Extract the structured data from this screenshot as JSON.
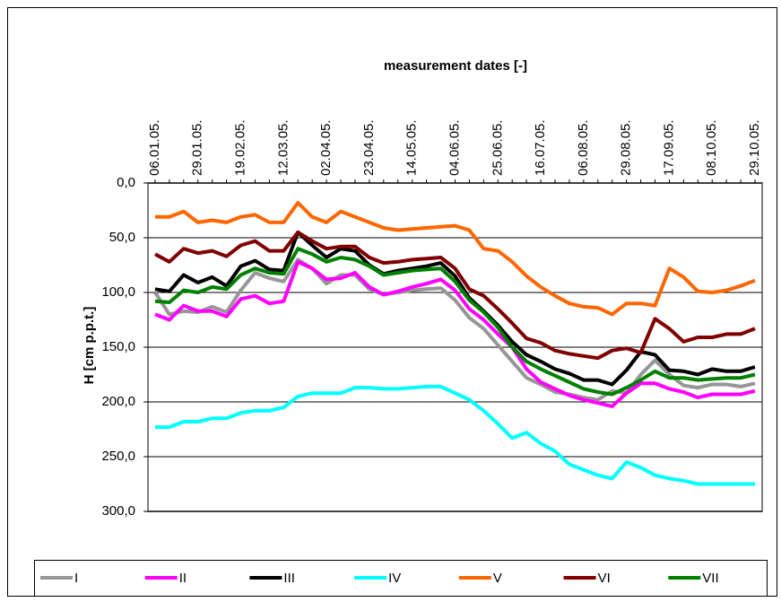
{
  "chart_data": {
    "type": "line",
    "title": "measurement dates [-]",
    "y_label": "H [cm p.p.t.]",
    "y_inverted": true,
    "grid": true,
    "legend": "bottom",
    "categories": [
      "06.01.05.",
      null,
      null,
      "29.01.05.",
      null,
      null,
      "19.02.05.",
      null,
      null,
      "12.03.05.",
      null,
      null,
      "02.04.05.",
      null,
      null,
      "23.04.05.",
      null,
      null,
      "14.05.05.",
      null,
      null,
      "04.06.05.",
      null,
      null,
      "25.06.05.",
      null,
      null,
      "16.07.05.",
      null,
      null,
      "06.08.05.",
      null,
      null,
      "29.08.05.",
      null,
      null,
      "17.09.05.",
      null,
      null,
      "08.10.05.",
      null,
      null,
      "29.10.05."
    ],
    "ylim": [
      0,
      300
    ],
    "yticks": [
      {
        "value": 0,
        "label": "0,0"
      },
      {
        "value": 50,
        "label": "50,0"
      },
      {
        "value": 100,
        "label": "100,0"
      },
      {
        "value": 150,
        "label": "150,0"
      },
      {
        "value": 200,
        "label": "200,0"
      },
      {
        "value": 250,
        "label": "250,0"
      },
      {
        "value": 300,
        "label": "300,0"
      }
    ],
    "series": [
      {
        "name": "I",
        "color": "#969696",
        "values": [
          100,
          120,
          117,
          118,
          113,
          118,
          98,
          82,
          87,
          90,
          70,
          78,
          92,
          84,
          84,
          97,
          102,
          100,
          98,
          97,
          96,
          107,
          123,
          133,
          148,
          163,
          178,
          184,
          191,
          193,
          196,
          198,
          190,
          192,
          175,
          162,
          175,
          185,
          187,
          184,
          184,
          186,
          183
        ]
      },
      {
        "name": "II",
        "color": "#ff00ff",
        "values": [
          120,
          125,
          112,
          117,
          117,
          122,
          106,
          103,
          110,
          108,
          72,
          78,
          88,
          87,
          82,
          95,
          102,
          99,
          95,
          92,
          88,
          98,
          115,
          125,
          138,
          150,
          170,
          182,
          188,
          194,
          198,
          201,
          204,
          192,
          183,
          183,
          188,
          191,
          196,
          193,
          193,
          193,
          190
        ]
      },
      {
        "name": "III",
        "color": "#000000",
        "values": [
          97,
          99,
          84,
          91,
          86,
          94,
          76,
          71,
          79,
          80,
          45,
          57,
          68,
          60,
          62,
          75,
          83,
          80,
          78,
          76,
          73,
          85,
          105,
          117,
          130,
          145,
          157,
          163,
          170,
          174,
          180,
          180,
          184,
          171,
          154,
          157,
          171,
          172,
          175,
          170,
          172,
          172,
          168
        ]
      },
      {
        "name": "IV",
        "color": "#00ffff",
        "values": [
          223,
          223,
          218,
          218,
          215,
          215,
          210,
          208,
          208,
          205,
          195,
          192,
          192,
          192,
          187,
          187,
          188,
          188,
          187,
          186,
          186,
          192,
          198,
          208,
          220,
          233,
          228,
          238,
          245,
          257,
          262,
          267,
          270,
          255,
          260,
          267,
          270,
          272,
          275,
          275,
          275,
          275,
          275
        ]
      },
      {
        "name": "V",
        "color": "#ff6600",
        "values": [
          31,
          31,
          26,
          36,
          34,
          36,
          31,
          29,
          36,
          36,
          18,
          31,
          36,
          26,
          31,
          36,
          41,
          43,
          42,
          41,
          40,
          39,
          43,
          60,
          62,
          72,
          85,
          95,
          103,
          110,
          113,
          114,
          120,
          110,
          110,
          112,
          78,
          86,
          99,
          100,
          98,
          94,
          89
        ]
      },
      {
        "name": "VI",
        "color": "#800000",
        "values": [
          65,
          72,
          60,
          64,
          62,
          67,
          57,
          53,
          62,
          62,
          45,
          53,
          60,
          58,
          58,
          68,
          73,
          72,
          70,
          69,
          68,
          78,
          97,
          103,
          115,
          128,
          142,
          146,
          153,
          156,
          158,
          160,
          153,
          151,
          155,
          124,
          133,
          145,
          141,
          141,
          138,
          138,
          133
        ]
      },
      {
        "name": "VII",
        "color": "#008000",
        "values": [
          108,
          109,
          98,
          100,
          95,
          97,
          84,
          78,
          82,
          83,
          60,
          65,
          72,
          68,
          70,
          76,
          84,
          82,
          80,
          79,
          78,
          90,
          107,
          118,
          132,
          150,
          163,
          170,
          176,
          182,
          188,
          191,
          193,
          187,
          180,
          172,
          178,
          178,
          180,
          179,
          178,
          178,
          175
        ]
      }
    ]
  }
}
